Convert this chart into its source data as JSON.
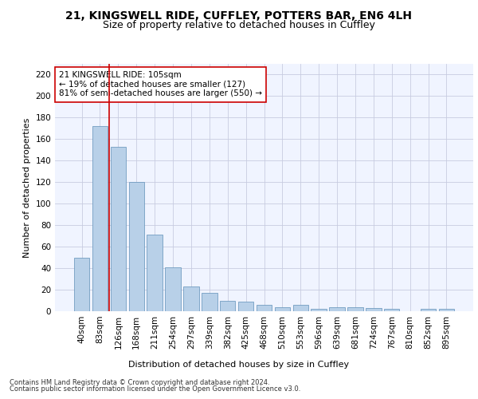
{
  "title1": "21, KINGSWELL RIDE, CUFFLEY, POTTERS BAR, EN6 4LH",
  "title2": "Size of property relative to detached houses in Cuffley",
  "xlabel": "Distribution of detached houses by size in Cuffley",
  "ylabel": "Number of detached properties",
  "categories": [
    "40sqm",
    "83sqm",
    "126sqm",
    "168sqm",
    "211sqm",
    "254sqm",
    "297sqm",
    "339sqm",
    "382sqm",
    "425sqm",
    "468sqm",
    "510sqm",
    "553sqm",
    "596sqm",
    "639sqm",
    "681sqm",
    "724sqm",
    "767sqm",
    "810sqm",
    "852sqm",
    "895sqm"
  ],
  "values": [
    50,
    172,
    153,
    120,
    71,
    41,
    23,
    17,
    10,
    9,
    6,
    4,
    6,
    2,
    4,
    4,
    3,
    2,
    0,
    2,
    2
  ],
  "bar_color": "#b8d0e8",
  "bar_edge_color": "#6090b8",
  "vline_x": 1.5,
  "vline_color": "#cc0000",
  "annotation_text": "21 KINGSWELL RIDE: 105sqm\n← 19% of detached houses are smaller (127)\n81% of semi-detached houses are larger (550) →",
  "annotation_box_color": "white",
  "annotation_box_edge": "#cc0000",
  "ylim": [
    0,
    230
  ],
  "yticks": [
    0,
    20,
    40,
    60,
    80,
    100,
    120,
    140,
    160,
    180,
    200,
    220
  ],
  "footer1": "Contains HM Land Registry data © Crown copyright and database right 2024.",
  "footer2": "Contains public sector information licensed under the Open Government Licence v3.0.",
  "bg_color": "#f0f4ff",
  "grid_color": "#c8cce0",
  "title1_fontsize": 10,
  "title2_fontsize": 9,
  "axis_label_fontsize": 8,
  "tick_fontsize": 7.5,
  "footer_fontsize": 6,
  "annot_fontsize": 7.5
}
